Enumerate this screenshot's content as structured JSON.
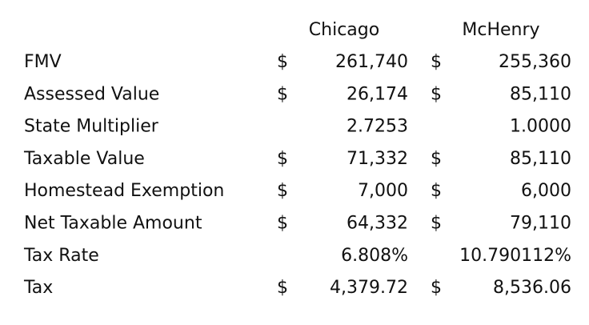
{
  "table": {
    "columns": [
      "Chicago",
      "McHenry"
    ],
    "rows": [
      {
        "label": "FMV",
        "chicago": {
          "symbol": "$",
          "value": "261,740"
        },
        "mchenry": {
          "symbol": "$",
          "value": "255,360"
        }
      },
      {
        "label": "Assessed Value",
        "chicago": {
          "symbol": "$",
          "value": "26,174"
        },
        "mchenry": {
          "symbol": "$",
          "value": "85,110"
        }
      },
      {
        "label": "State Multiplier",
        "chicago": {
          "value": "2.7253"
        },
        "mchenry": {
          "value": "1.0000"
        }
      },
      {
        "label": "Taxable Value",
        "chicago": {
          "symbol": "$",
          "value": "71,332"
        },
        "mchenry": {
          "symbol": "$",
          "value": "85,110"
        }
      },
      {
        "label": "Homestead Exemption",
        "chicago": {
          "symbol": "$",
          "value": "7,000"
        },
        "mchenry": {
          "symbol": "$",
          "value": "6,000"
        }
      },
      {
        "label": "Net Taxable Amount",
        "chicago": {
          "symbol": "$",
          "value": "64,332"
        },
        "mchenry": {
          "symbol": "$",
          "value": "79,110"
        }
      },
      {
        "label": "Tax Rate",
        "chicago": {
          "value": "6.808%"
        },
        "mchenry": {
          "value": "10.790112%"
        }
      },
      {
        "label": "Tax",
        "chicago": {
          "symbol": "$",
          "value": "4,379.72"
        },
        "mchenry": {
          "symbol": "$",
          "value": "8,536.06"
        }
      }
    ]
  }
}
